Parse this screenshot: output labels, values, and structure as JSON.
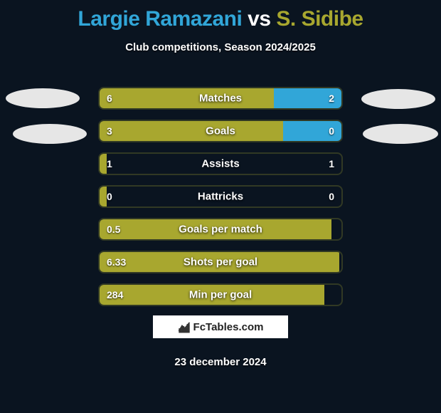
{
  "title": {
    "player1": "Largie Ramazani",
    "vs": "vs",
    "player2": "S. Sidibe"
  },
  "subtitle": "Club competitions, Season 2024/2025",
  "colors": {
    "player1": "#31a6d8",
    "player2_accent": "#a8a72f",
    "bar_left_fill": "#a8a72f",
    "bar_right_fill": "#31a6d8",
    "background": "#0a1420",
    "text": "#ffffff",
    "ellipse": "#e6e6e6",
    "brand_bg": "#ffffff"
  },
  "bars": [
    {
      "label": "Matches",
      "left_val": "6",
      "right_val": "2",
      "left_pct": 72,
      "right_pct": 28
    },
    {
      "label": "Goals",
      "left_val": "3",
      "right_val": "0",
      "left_pct": 76,
      "right_pct": 24
    },
    {
      "label": "Assists",
      "left_val": "1",
      "right_val": "1",
      "left_pct": 3,
      "right_pct": 0
    },
    {
      "label": "Hattricks",
      "left_val": "0",
      "right_val": "0",
      "left_pct": 3,
      "right_pct": 0
    },
    {
      "label": "Goals per match",
      "left_val": "0.5",
      "right_val": "",
      "left_pct": 96,
      "right_pct": 0
    },
    {
      "label": "Shots per goal",
      "left_val": "6.33",
      "right_val": "",
      "left_pct": 99,
      "right_pct": 0
    },
    {
      "label": "Min per goal",
      "left_val": "284",
      "right_val": "",
      "left_pct": 93,
      "right_pct": 0
    }
  ],
  "brand": "FcTables.com",
  "date": "23 december 2024"
}
